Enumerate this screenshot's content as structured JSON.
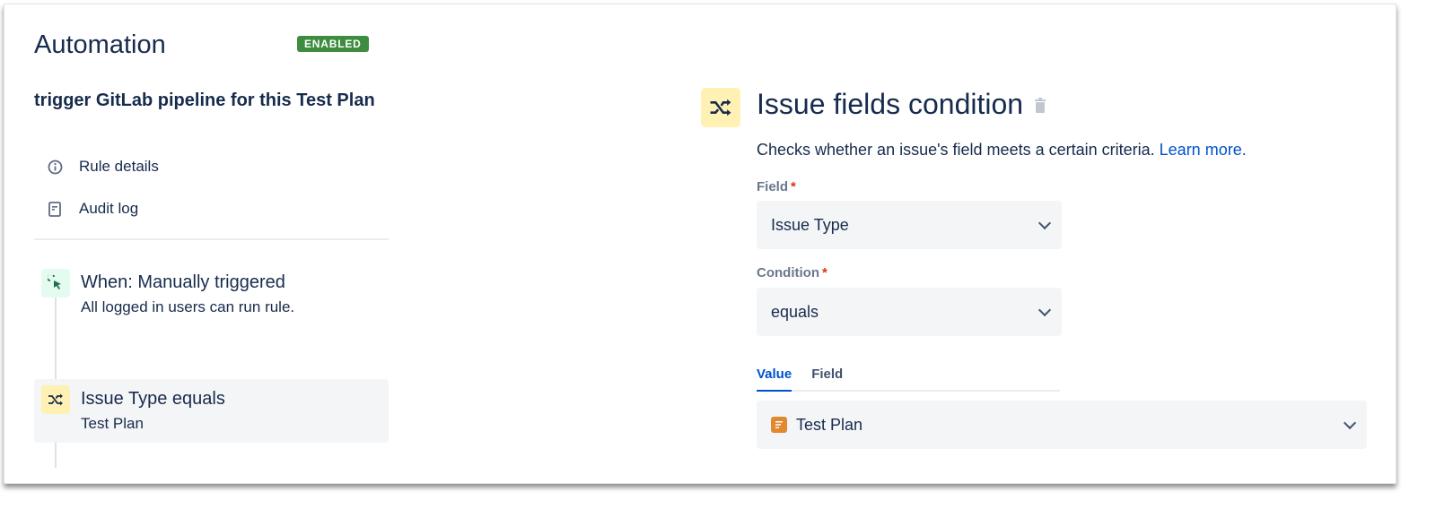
{
  "header": {
    "title": "Automation",
    "status_badge": "ENABLED"
  },
  "sidebar": {
    "rule_name": "trigger GitLab pipeline for this Test Plan",
    "nav": [
      {
        "label": "Rule details",
        "icon": "info-icon"
      },
      {
        "label": "Audit log",
        "icon": "document-icon"
      }
    ],
    "steps": [
      {
        "title": "When: Manually triggered",
        "subtitle": "All logged in users can run rule.",
        "icon": "cursor-click-icon",
        "color": "#e3fcef"
      },
      {
        "title": "Issue Type equals",
        "subtitle": "Test Plan",
        "icon": "shuffle-icon",
        "color": "#fff0b3",
        "selected": true
      }
    ]
  },
  "panel": {
    "title": "Issue fields condition",
    "description": "Checks whether an issue's field meets a certain criteria.",
    "learn_more": "Learn more.",
    "field_label": "Field",
    "field_value": "Issue Type",
    "condition_label": "Condition",
    "condition_value": "equals",
    "required_marker": "*",
    "tabs": [
      {
        "label": "Value",
        "active": true
      },
      {
        "label": "Field",
        "active": false
      }
    ],
    "value_select": "Test Plan"
  }
}
